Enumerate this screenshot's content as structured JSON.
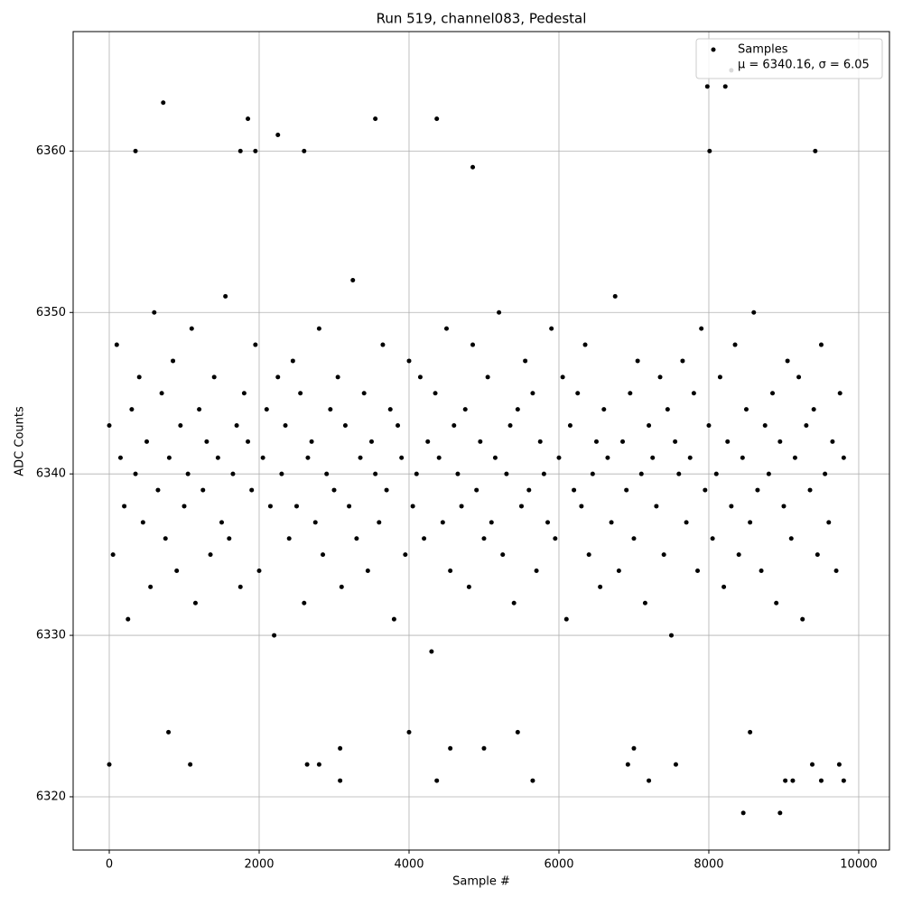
{
  "chart_data": {
    "type": "scatter",
    "title": "Run 519, channel083, Pedestal",
    "x_label": "Sample #",
    "y_label": "ADC Counts",
    "xlim": [
      -482,
      10410
    ],
    "ylim": [
      6316.7,
      6367.4
    ],
    "xticks": [
      0,
      2000,
      4000,
      6000,
      8000,
      10000
    ],
    "yticks": [
      6320,
      6330,
      6340,
      6350,
      6360
    ],
    "grid": true,
    "legend_position": "upper-right",
    "legend_note": "μ = 6340.16, σ = 6.05",
    "series": [
      {
        "name": "Samples",
        "color": "#000000",
        "x": [
          0,
          50,
          100,
          150,
          200,
          250,
          300,
          350,
          400,
          450,
          500,
          550,
          600,
          650,
          700,
          750,
          800,
          850,
          900,
          950,
          1000,
          1050,
          1100,
          1150,
          1200,
          1250,
          1300,
          1350,
          1400,
          1450,
          1500,
          1550,
          1600,
          1650,
          1700,
          1750,
          1800,
          1850,
          1900,
          1950,
          2000,
          2050,
          2100,
          2150,
          2200,
          2250,
          2300,
          2350,
          2400,
          2450,
          2500,
          2550,
          2600,
          2650,
          2700,
          2750,
          2800,
          2850,
          2900,
          2950,
          3000,
          3050,
          3100,
          3150,
          3200,
          3250,
          3300,
          3350,
          3400,
          3450,
          3500,
          3550,
          3600,
          3650,
          3700,
          3750,
          3800,
          3850,
          3900,
          3950,
          4000,
          4050,
          4100,
          4150,
          4200,
          4250,
          4300,
          4350,
          4400,
          4450,
          4500,
          4550,
          4600,
          4650,
          4700,
          4750,
          4800,
          4850,
          4900,
          4950,
          5000,
          5050,
          5100,
          5150,
          5200,
          5250,
          5300,
          5350,
          5400,
          5450,
          5500,
          5550,
          5600,
          5650,
          5700,
          5750,
          5800,
          5850,
          5900,
          5950,
          6000,
          6050,
          6100,
          6150,
          6200,
          6250,
          6300,
          6350,
          6400,
          6450,
          6500,
          6550,
          6600,
          6650,
          6700,
          6750,
          6800,
          6850,
          6900,
          6950,
          7000,
          7050,
          7100,
          7150,
          7200,
          7250,
          7300,
          7350,
          7400,
          7450,
          7500,
          7550,
          7600,
          7650,
          7700,
          7750,
          7800,
          7850,
          7900,
          7950,
          8000,
          8050,
          8100,
          8150,
          8200,
          8250,
          8300,
          8350,
          8400,
          8450,
          8500,
          8550,
          8600,
          8650,
          8700,
          8750,
          8800,
          8850,
          8900,
          8950,
          9000,
          9050,
          9100,
          9150,
          9200,
          9250,
          9300,
          9350,
          9400,
          9450,
          9500,
          9550,
          9600,
          9650,
          9700,
          9750,
          9800,
          0,
          720,
          350,
          1850,
          1750,
          1950,
          2250,
          2600,
          3550,
          4370,
          4850,
          7980,
          8220,
          8300,
          8010,
          9420,
          1080,
          3080,
          2640,
          2800,
          4370,
          5650,
          6920,
          7200,
          7560,
          8460,
          8950,
          9020,
          9120,
          9380,
          9500,
          9740,
          9800,
          3080,
          4550,
          5000,
          7000,
          5450,
          790,
          4000,
          8550
        ],
        "values": [
          6343,
          6335,
          6348,
          6341,
          6338,
          6331,
          6344,
          6340,
          6346,
          6337,
          6342,
          6333,
          6350,
          6339,
          6345,
          6336,
          6341,
          6347,
          6334,
          6343,
          6338,
          6340,
          6349,
          6332,
          6344,
          6339,
          6342,
          6335,
          6346,
          6341,
          6337,
          6351,
          6336,
          6340,
          6343,
          6333,
          6345,
          6342,
          6339,
          6348,
          6334,
          6341,
          6344,
          6338,
          6330,
          6346,
          6340,
          6343,
          6336,
          6347,
          6338,
          6345,
          6332,
          6341,
          6342,
          6337,
          6349,
          6335,
          6340,
          6344,
          6339,
          6346,
          6333,
          6343,
          6338,
          6352,
          6336,
          6341,
          6345,
          6334,
          6342,
          6340,
          6337,
          6348,
          6339,
          6344,
          6331,
          6343,
          6341,
          6335,
          6347,
          6338,
          6340,
          6346,
          6336,
          6342,
          6329,
          6345,
          6341,
          6337,
          6349,
          6334,
          6343,
          6340,
          6338,
          6344,
          6333,
          6348,
          6339,
          6342,
          6336,
          6346,
          6337,
          6341,
          6350,
          6335,
          6340,
          6343,
          6332,
          6344,
          6338,
          6347,
          6339,
          6345,
          6334,
          6342,
          6340,
          6337,
          6349,
          6336,
          6341,
          6346,
          6331,
          6343,
          6339,
          6345,
          6338,
          6348,
          6335,
          6340,
          6342,
          6333,
          6344,
          6341,
          6337,
          6351,
          6334,
          6342,
          6339,
          6345,
          6336,
          6347,
          6340,
          6332,
          6343,
          6341,
          6338,
          6346,
          6335,
          6344,
          6330,
          6342,
          6340,
          6347,
          6337,
          6341,
          6345,
          6334,
          6349,
          6339,
          6343,
          6336,
          6340,
          6346,
          6333,
          6342,
          6338,
          6348,
          6335,
          6341,
          6344,
          6337,
          6350,
          6339,
          6334,
          6343,
          6340,
          6345,
          6332,
          6342,
          6338,
          6347,
          6336,
          6341,
          6346,
          6331,
          6343,
          6339,
          6344,
          6335,
          6348,
          6340,
          6337,
          6342,
          6334,
          6345,
          6341,
          6322,
          6363,
          6360,
          6362,
          6360,
          6360,
          6361,
          6360,
          6362,
          6362,
          6359,
          6364,
          6364,
          6365,
          6360,
          6360,
          6322,
          6321,
          6322,
          6322,
          6321,
          6321,
          6322,
          6321,
          6322,
          6319,
          6319,
          6321,
          6321,
          6322,
          6321,
          6322,
          6321,
          6323,
          6323,
          6323,
          6323,
          6324,
          6324,
          6324,
          6324
        ]
      }
    ]
  }
}
